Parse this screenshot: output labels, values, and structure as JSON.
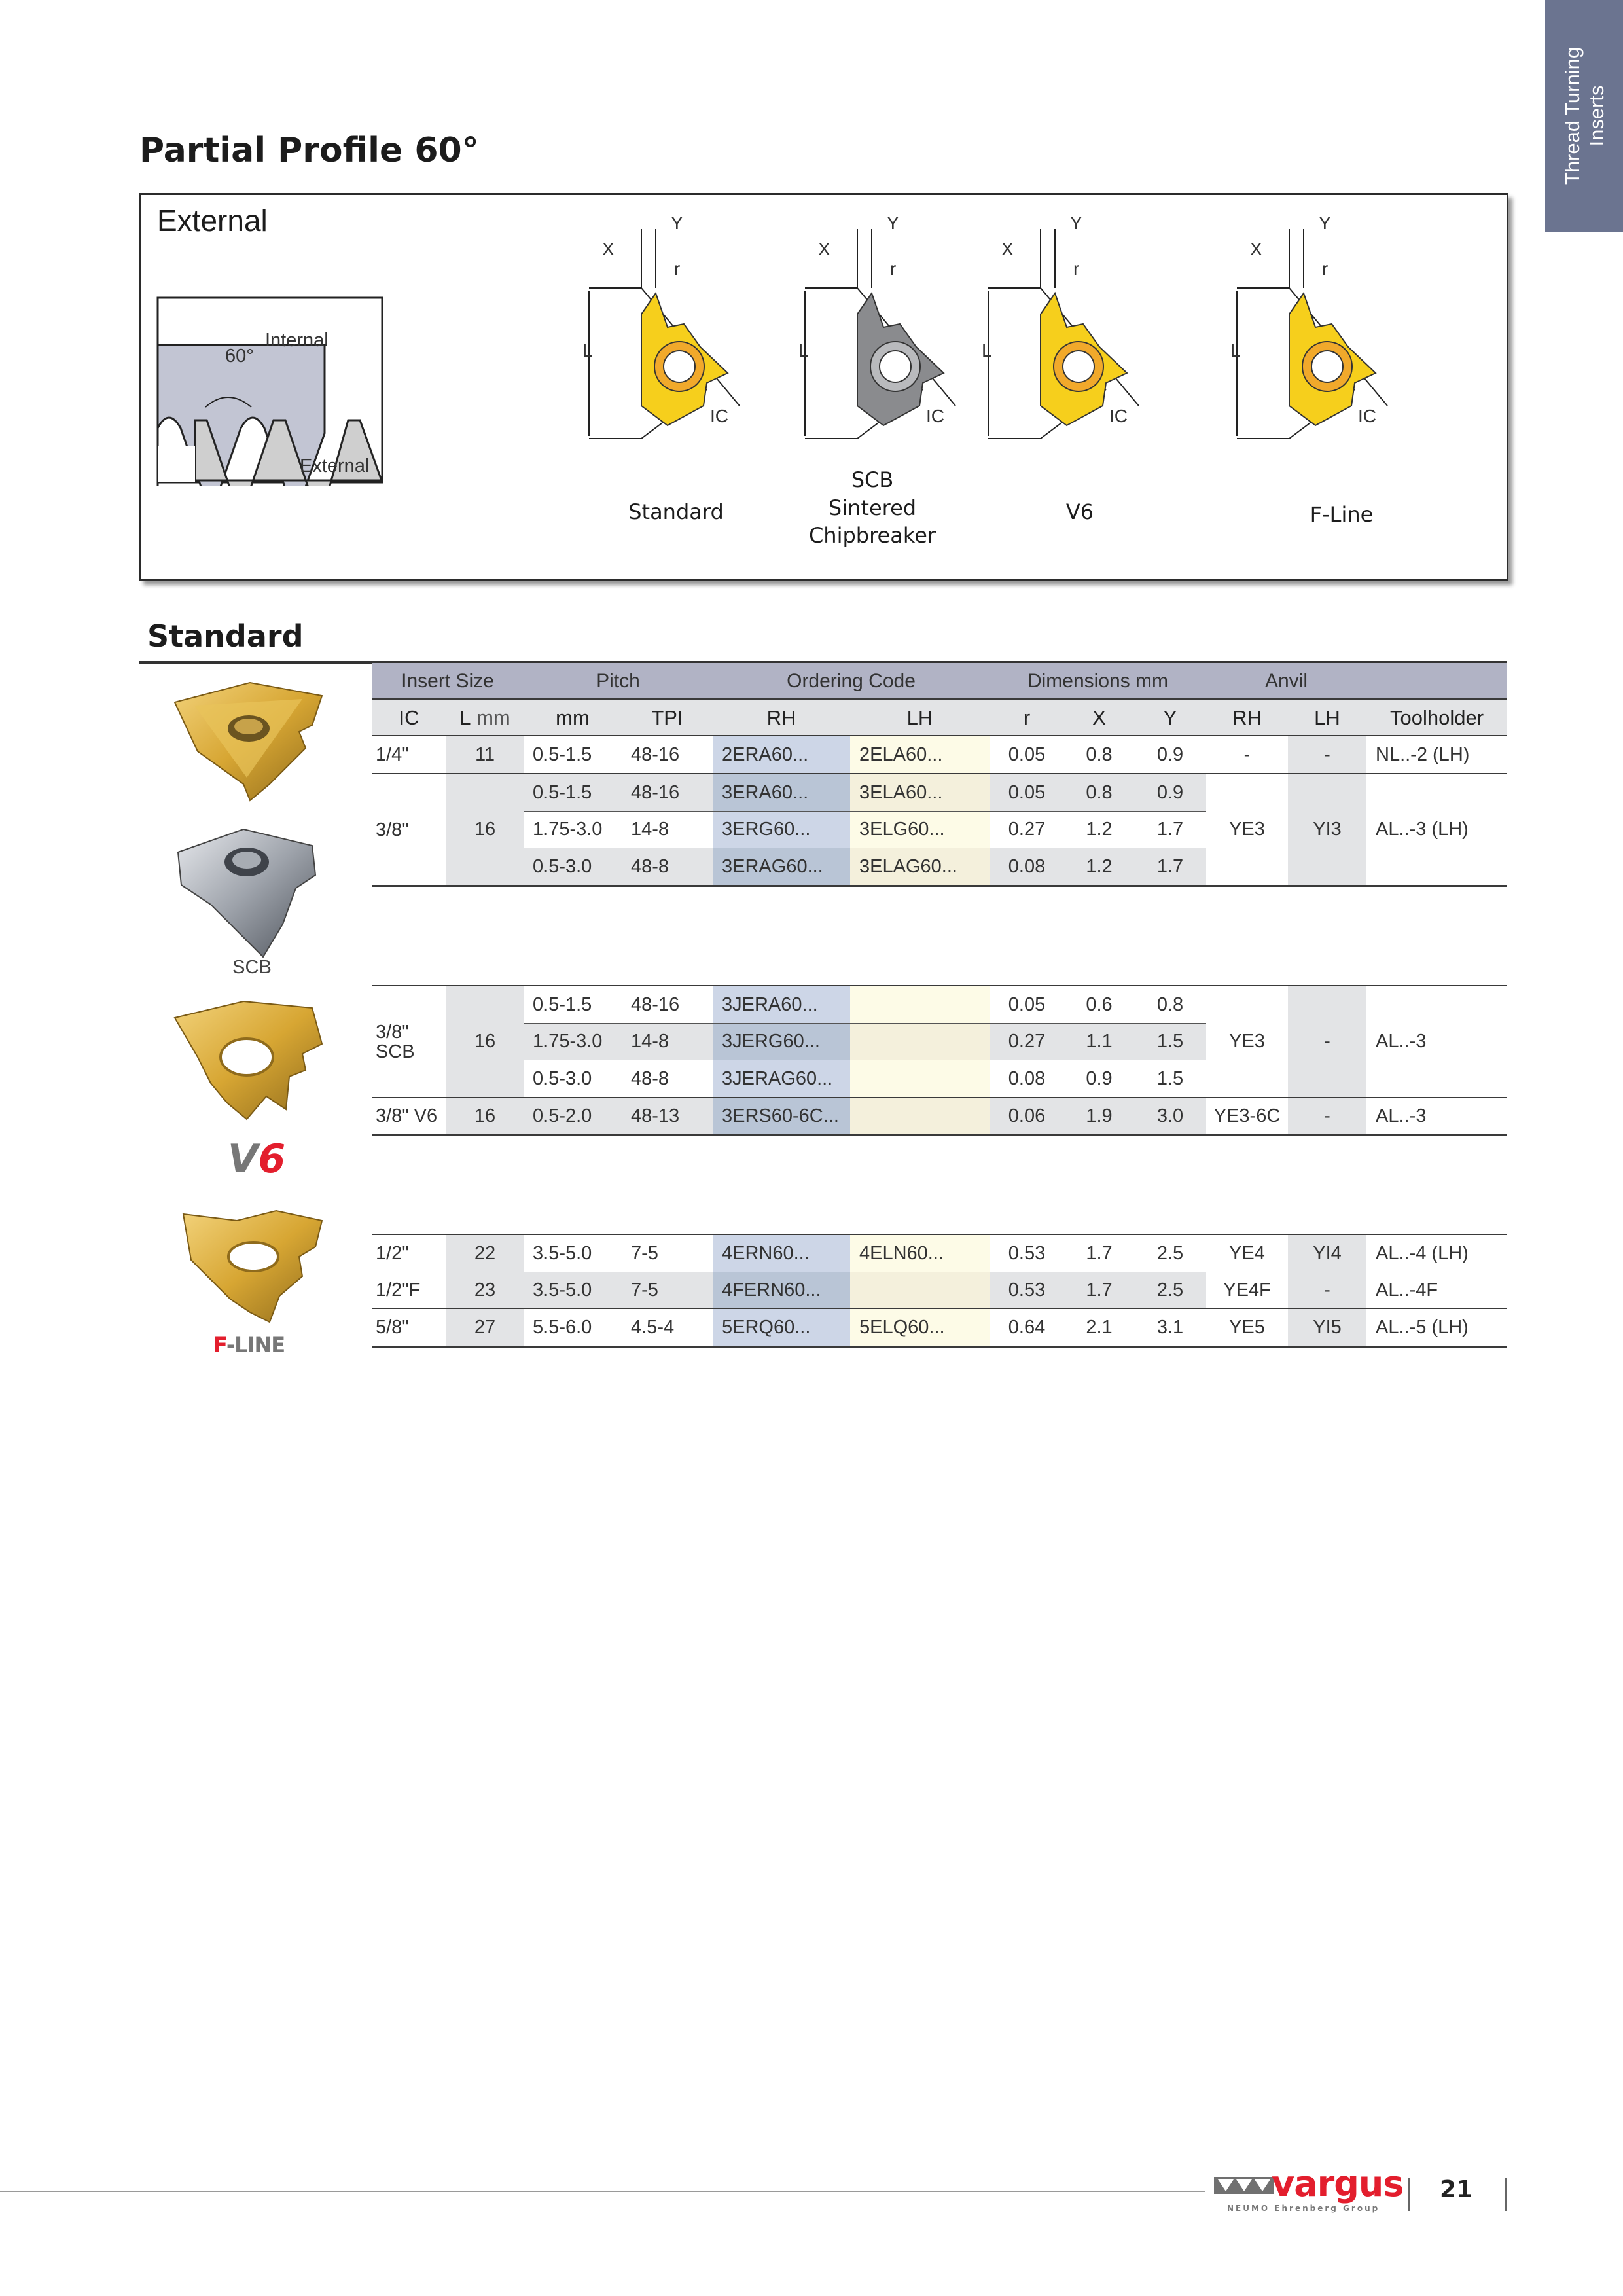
{
  "side_tab": {
    "line1": "Thread Turning",
    "line2": "Inserts",
    "color": "#6b7490"
  },
  "page_title": "Partial Profile 60°",
  "diagram": {
    "title": "External",
    "thread_labels": {
      "internal": "Internal",
      "external": "External",
      "angle": "60°"
    },
    "dimension_labels": {
      "x": "X",
      "y": "Y",
      "r": "r",
      "l": "L",
      "ic": "IC"
    },
    "inserts": [
      {
        "name": "Standard",
        "lines": [
          "Standard"
        ]
      },
      {
        "name": "SCB",
        "lines": [
          "SCB",
          "Sintered",
          "Chipbreaker"
        ]
      },
      {
        "name": "V6",
        "lines": [
          "V6"
        ]
      },
      {
        "name": "F-Line",
        "lines": [
          "F-Line"
        ]
      }
    ]
  },
  "section_title": "Standard",
  "photos": {
    "scb_label": "SCB",
    "v6_logo": "V6",
    "fline_logo": "F-LINE"
  },
  "table": {
    "group_headers": [
      "Insert Size",
      "Pitch",
      "Ordering Code",
      "Dimensions mm",
      "Anvil"
    ],
    "columns": {
      "ic": "IC",
      "l": "L",
      "l_unit": "mm",
      "mm": "mm",
      "tpi": "TPI",
      "rh": "RH",
      "lh": "LH",
      "r": "r",
      "x": "X",
      "y": "Y",
      "anvil_rh": "RH",
      "anvil_lh": "LH",
      "toolholder": "Toolholder"
    },
    "colors": {
      "rh": "#cdd6e7",
      "rh_alt": "#b9c5d6",
      "lh": "#fdfbe7",
      "lh_alt": "#f4f0dc",
      "gray": "#e3e4e6"
    },
    "groups": [
      {
        "rows": [
          {
            "ic": "1/4\"",
            "l": "11",
            "mm": "0.5-1.5",
            "tpi": "48-16",
            "rh": "2ERA60...",
            "lh": "2ELA60...",
            "r": "0.05",
            "x": "0.8",
            "y": "0.9",
            "anvil_rh": "-",
            "anvil_lh": "-",
            "toolholder": "NL..-2 (LH)"
          }
        ]
      },
      {
        "ic": "3/8\"",
        "l": "16",
        "anvil_rh": "YE3",
        "anvil_lh": "YI3",
        "toolholder": "AL..-3 (LH)",
        "rows": [
          {
            "mm": "0.5-1.5",
            "tpi": "48-16",
            "rh": "3ERA60...",
            "lh": "3ELA60...",
            "r": "0.05",
            "x": "0.8",
            "y": "0.9"
          },
          {
            "mm": "1.75-3.0",
            "tpi": "14-8",
            "rh": "3ERG60...",
            "lh": "3ELG60...",
            "r": "0.27",
            "x": "1.2",
            "y": "1.7"
          },
          {
            "mm": "0.5-3.0",
            "tpi": "48-8",
            "rh": "3ERAG60...",
            "lh": "3ELAG60...",
            "r": "0.08",
            "x": "1.2",
            "y": "1.7"
          }
        ]
      },
      {
        "ic": "3/8\" SCB",
        "l": "16",
        "anvil_rh": "YE3",
        "anvil_lh": "-",
        "toolholder": "AL..-3",
        "rows": [
          {
            "mm": "0.5-1.5",
            "tpi": "48-16",
            "rh": "3JERA60...",
            "lh": "",
            "r": "0.05",
            "x": "0.6",
            "y": "0.8"
          },
          {
            "mm": "1.75-3.0",
            "tpi": "14-8",
            "rh": "3JERG60...",
            "lh": "",
            "r": "0.27",
            "x": "1.1",
            "y": "1.5"
          },
          {
            "mm": "0.5-3.0",
            "tpi": "48-8",
            "rh": "3JERAG60...",
            "lh": "",
            "r": "0.08",
            "x": "0.9",
            "y": "1.5"
          }
        ]
      },
      {
        "rows": [
          {
            "ic": "3/8\" V6",
            "l": "16",
            "mm": "0.5-2.0",
            "tpi": "48-13",
            "rh": "3ERS60-6C...",
            "lh": "",
            "r": "0.06",
            "x": "1.9",
            "y": "3.0",
            "anvil_rh": "YE3-6C",
            "anvil_lh": "-",
            "toolholder": "AL..-3"
          }
        ]
      },
      {
        "rows": [
          {
            "ic": "1/2\"",
            "l": "22",
            "mm": "3.5-5.0",
            "tpi": "7-5",
            "rh": "4ERN60...",
            "lh": "4ELN60...",
            "r": "0.53",
            "x": "1.7",
            "y": "2.5",
            "anvil_rh": "YE4",
            "anvil_lh": "YI4",
            "toolholder": "AL..-4 (LH)"
          },
          {
            "ic": "1/2\"F",
            "l": "23",
            "mm": "3.5-5.0",
            "tpi": "7-5",
            "rh": "4FERN60...",
            "lh": "",
            "r": "0.53",
            "x": "1.7",
            "y": "2.5",
            "anvil_rh": "YE4F",
            "anvil_lh": "-",
            "toolholder": "AL..-4F"
          },
          {
            "ic": "5/8\"",
            "l": "27",
            "mm": "5.5-6.0",
            "tpi": "4.5-4",
            "rh": "5ERQ60...",
            "lh": "5ELQ60...",
            "r": "0.64",
            "x": "2.1",
            "y": "3.1",
            "anvil_rh": "YE5",
            "anvil_lh": "YI5",
            "toolholder": "AL..-5 (LH)"
          }
        ]
      }
    ]
  },
  "footer": {
    "brand": "vargus",
    "tagline": "NEUMO Ehrenberg Group",
    "page_number": "21",
    "brand_color": "#e31e2d"
  }
}
